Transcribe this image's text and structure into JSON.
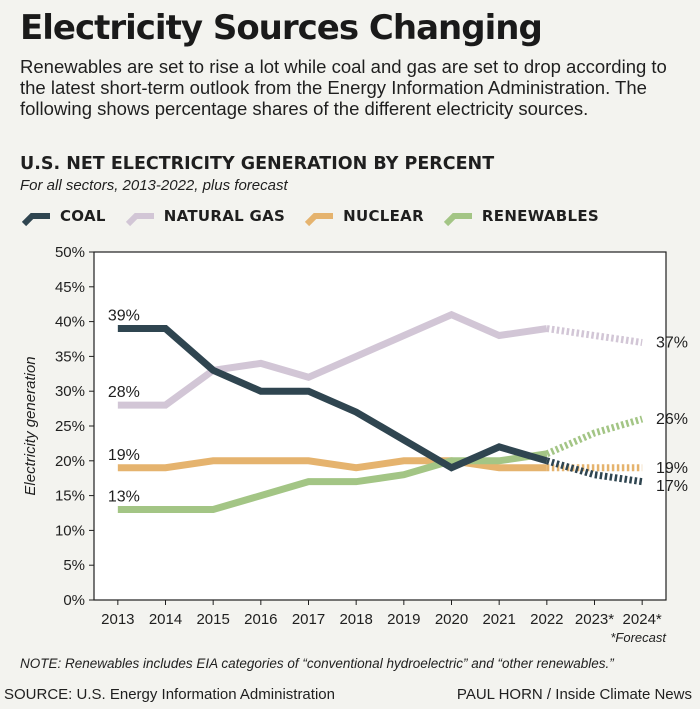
{
  "header": {
    "title": "Electricity Sources Changing",
    "subtitle": "Renewables are set to rise a lot while coal and gas are set to drop according to the latest short-term outlook from the Energy Information Administration. The following shows percentage shares of the different electricity sources."
  },
  "chart_data": {
    "type": "line",
    "title": "U.S. NET ELECTRICITY GENERATION BY PERCENT",
    "subtitle": "For all sectors, 2013-2022, plus forecast",
    "ylabel": "Electricity generation",
    "xlabel": "",
    "ylim": [
      0,
      50
    ],
    "yticks": [
      "0%",
      "5%",
      "10%",
      "15%",
      "20%",
      "25%",
      "30%",
      "35%",
      "40%",
      "45%",
      "50%"
    ],
    "categories": [
      "2013",
      "2014",
      "2015",
      "2016",
      "2017",
      "2018",
      "2019",
      "2020",
      "2021",
      "2022",
      "2023*",
      "2024*"
    ],
    "forecast_start_index": 9,
    "forecast_note": "*Forecast",
    "grid": false,
    "legend_position": "top-left",
    "series": [
      {
        "name": "COAL",
        "color": "#2f4550",
        "values": [
          39,
          39,
          33,
          30,
          30,
          27,
          23,
          19,
          22,
          20,
          18,
          17
        ],
        "start_label": "39%",
        "end_label": "17%"
      },
      {
        "name": "NATURAL GAS",
        "color": "#d2c6d6",
        "values": [
          28,
          28,
          33,
          34,
          32,
          35,
          38,
          41,
          38,
          39,
          38,
          37
        ],
        "start_label": "28%",
        "end_label": "37%"
      },
      {
        "name": "NUCLEAR",
        "color": "#e5b36e",
        "values": [
          19,
          19,
          20,
          20,
          20,
          19,
          20,
          20,
          19,
          19,
          19,
          19
        ],
        "start_label": "19%",
        "end_label": "19%"
      },
      {
        "name": "RENEWABLES",
        "color": "#a3c585",
        "values": [
          13,
          13,
          13,
          15,
          17,
          17,
          18,
          20,
          20,
          21,
          24,
          26
        ],
        "start_label": "13%",
        "end_label": "26%"
      }
    ]
  },
  "footer": {
    "note": "NOTE:  Renewables includes EIA categories of “conventional hydroelectric” and “other renewables.”",
    "source": "SOURCE: U.S. Energy Information Administration",
    "credit": "PAUL HORN / Inside Climate News"
  }
}
